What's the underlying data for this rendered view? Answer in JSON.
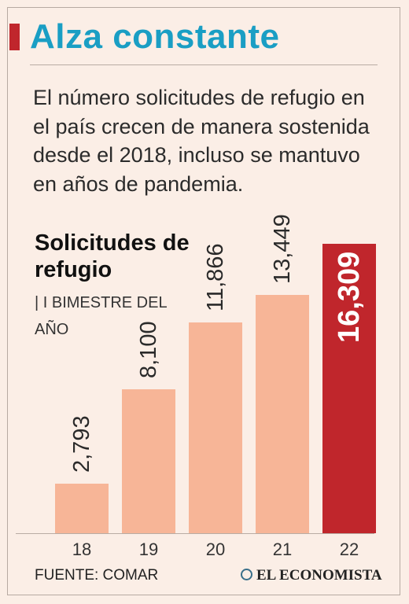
{
  "header": {
    "title": "Alza constante",
    "description": "El número solicitudes de refugio en el país crecen de manera sostenida desde el 2018, incluso se mantuvo en años de pandemia."
  },
  "colors": {
    "title": "#1a9ec4",
    "accent": "#c0262c",
    "bar": "#f7b597",
    "bar_highlight": "#c0262c"
  },
  "chart_data": {
    "type": "bar",
    "title": "Solicitudes de refugio",
    "subtitle": "| I BIMESTRE DEL AÑO",
    "categories": [
      "18",
      "19",
      "20",
      "21",
      "22"
    ],
    "values": [
      2793,
      8100,
      11866,
      13449,
      16309
    ],
    "value_labels": [
      "2,793",
      "8,100",
      "11,866",
      "13,449",
      "16,309"
    ],
    "highlight_index": 4,
    "ylim": [
      0,
      16309
    ],
    "grid": false,
    "legend": "none"
  },
  "footer": {
    "source": "FUENTE: COMAR",
    "brand": "EL ECONOMISTA"
  }
}
